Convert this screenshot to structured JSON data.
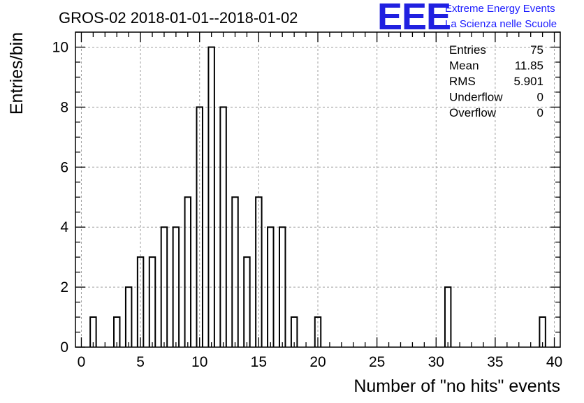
{
  "title": "GROS-02 2018-01-01--2018-01-02",
  "logo": {
    "mark": "EEE",
    "line1": "Extreme Energy Events",
    "line2": "La Scienza nelle Scuole",
    "color": "#2020e0"
  },
  "stats": [
    {
      "label": "Entries",
      "value": "75"
    },
    {
      "label": "Mean",
      "value": "11.85"
    },
    {
      "label": "RMS",
      "value": "5.901"
    },
    {
      "label": "Underflow",
      "value": "0"
    },
    {
      "label": "Overflow",
      "value": "0"
    }
  ],
  "chart_data": {
    "type": "bar",
    "xlabel": "Number of \"no hits\" events",
    "ylabel": "Entries/bin",
    "xlim": [
      -0.5,
      40.5
    ],
    "ylim": [
      0,
      10.5
    ],
    "x_ticks": [
      0,
      5,
      10,
      15,
      20,
      25,
      30,
      35,
      40
    ],
    "y_ticks": [
      0,
      2,
      4,
      6,
      8,
      10
    ],
    "grid": true,
    "bin_width": 0.5,
    "bins": [
      {
        "x": 1,
        "y": 1
      },
      {
        "x": 3,
        "y": 1
      },
      {
        "x": 4,
        "y": 2
      },
      {
        "x": 5,
        "y": 3
      },
      {
        "x": 6,
        "y": 3
      },
      {
        "x": 7,
        "y": 4
      },
      {
        "x": 8,
        "y": 4
      },
      {
        "x": 9,
        "y": 5
      },
      {
        "x": 10,
        "y": 8
      },
      {
        "x": 11,
        "y": 10
      },
      {
        "x": 12,
        "y": 8
      },
      {
        "x": 13,
        "y": 5
      },
      {
        "x": 14,
        "y": 3
      },
      {
        "x": 15,
        "y": 5
      },
      {
        "x": 16,
        "y": 4
      },
      {
        "x": 17,
        "y": 4
      },
      {
        "x": 18,
        "y": 1
      },
      {
        "x": 20,
        "y": 1
      },
      {
        "x": 31,
        "y": 2
      },
      {
        "x": 39,
        "y": 1
      }
    ]
  }
}
